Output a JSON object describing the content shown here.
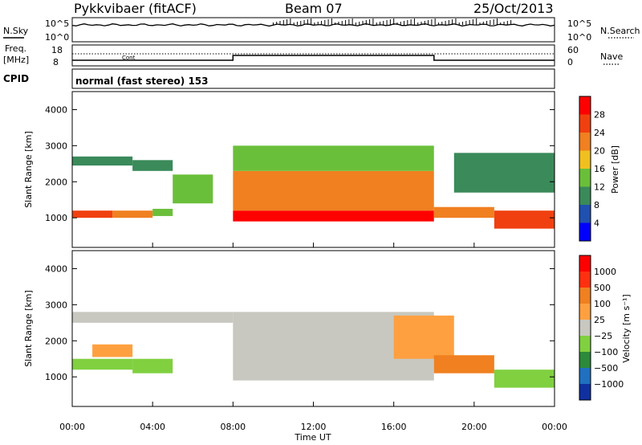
{
  "header": {
    "station": "Pykkvibaer (fitACF)",
    "beam": "Beam 07",
    "date": "25/Oct/2013"
  },
  "left_labels": {
    "nsky": "N.Sky",
    "freq_line1": "Freq.",
    "freq_line2": "[MHz]",
    "cpid": "CPID"
  },
  "right_labels": {
    "nsearch": "N.Search",
    "nave": "Nave"
  },
  "noise_panel": {
    "left_top": "10^5",
    "left_bottom": "10^0",
    "right_top": "10^5",
    "right_bottom": "10^0"
  },
  "freq_panel": {
    "left_ticks": [
      "18",
      "8"
    ],
    "right_ticks": [
      "60",
      "0"
    ],
    "inline_label": "Cont"
  },
  "cpid_panel": {
    "text": "normal (fast stereo) 153"
  },
  "power_panel": {
    "ylabel": "Slant Range [km]",
    "yticks": [
      "4000",
      "3000",
      "2000",
      "1000"
    ],
    "colorbar_label": "Power [dB]",
    "colorbar_ticks": [
      "28",
      "24",
      "20",
      "16",
      "12",
      "8",
      "4"
    ],
    "colors": [
      "#0000ff",
      "#2050b0",
      "#3a8a5a",
      "#6abf3a",
      "#f0c020",
      "#f08020",
      "#f04010",
      "#ff0000"
    ]
  },
  "velocity_panel": {
    "ylabel": "Slant Range [km]",
    "yticks": [
      "4000",
      "3000",
      "2000",
      "1000"
    ],
    "colorbar_label": "Velocity [m s⁻¹]",
    "colorbar_ticks": [
      "1000",
      "500",
      "100",
      "25",
      "−25",
      "−100",
      "−500",
      "−1000"
    ],
    "colors": [
      "#1030a0",
      "#2070c0",
      "#2c8a3a",
      "#80d040",
      "#c8c8c0",
      "#ffa040",
      "#f08020",
      "#ff3010",
      "#ff0000"
    ]
  },
  "xaxis": {
    "label": "Time UT",
    "ticks": [
      "00:00",
      "04:00",
      "08:00",
      "12:00",
      "16:00",
      "20:00",
      "00:00"
    ]
  },
  "chart_data": {
    "type": "heatmap",
    "title": "Pykkvibaer (fitACF)   Beam 07   25/Oct/2013",
    "xlabel": "Time UT",
    "ylabel": "Slant Range [km]",
    "xlim_hours": [
      0,
      24
    ],
    "ylim_km": [
      180,
      4500
    ],
    "frequency_mhz": [
      {
        "start": 0,
        "end": 8,
        "value": 10
      },
      {
        "start": 8,
        "end": 18,
        "value": 12
      },
      {
        "start": 18,
        "end": 24,
        "value": 10
      }
    ],
    "power": {
      "colorbar_label": "Power [dB]",
      "range_db": [
        0,
        32
      ],
      "cells": [
        [
          0,
          2,
          1000,
          1200,
          24
        ],
        [
          2,
          4,
          1000,
          1200,
          22
        ],
        [
          4,
          5,
          1050,
          1250,
          14
        ],
        [
          0,
          3,
          2450,
          2700,
          8
        ],
        [
          3,
          5,
          2300,
          2600,
          8
        ],
        [
          5,
          7,
          1400,
          2200,
          12
        ],
        [
          8,
          18,
          900,
          1200,
          28
        ],
        [
          8,
          18,
          1200,
          2300,
          20
        ],
        [
          8,
          12,
          2300,
          3000,
          14
        ],
        [
          12,
          18,
          2300,
          3000,
          14
        ],
        [
          18,
          21,
          1000,
          1300,
          22
        ],
        [
          19,
          24,
          1700,
          2800,
          10
        ],
        [
          21,
          24,
          700,
          1200,
          24
        ]
      ]
    },
    "velocity": {
      "colorbar_label": "Velocity [m s⁻¹]",
      "range_ms": [
        -1000,
        1000
      ],
      "cells": [
        [
          0,
          3,
          1200,
          1500,
          -300
        ],
        [
          3,
          5,
          1100,
          1500,
          -200
        ],
        [
          1,
          3,
          1550,
          1900,
          150
        ],
        [
          0,
          8,
          2500,
          2800,
          0
        ],
        [
          8,
          18,
          900,
          2800,
          0
        ],
        [
          16,
          19,
          1500,
          2700,
          200
        ],
        [
          18,
          21,
          1100,
          1600,
          400
        ],
        [
          21,
          24,
          700,
          1200,
          -200
        ]
      ]
    }
  }
}
